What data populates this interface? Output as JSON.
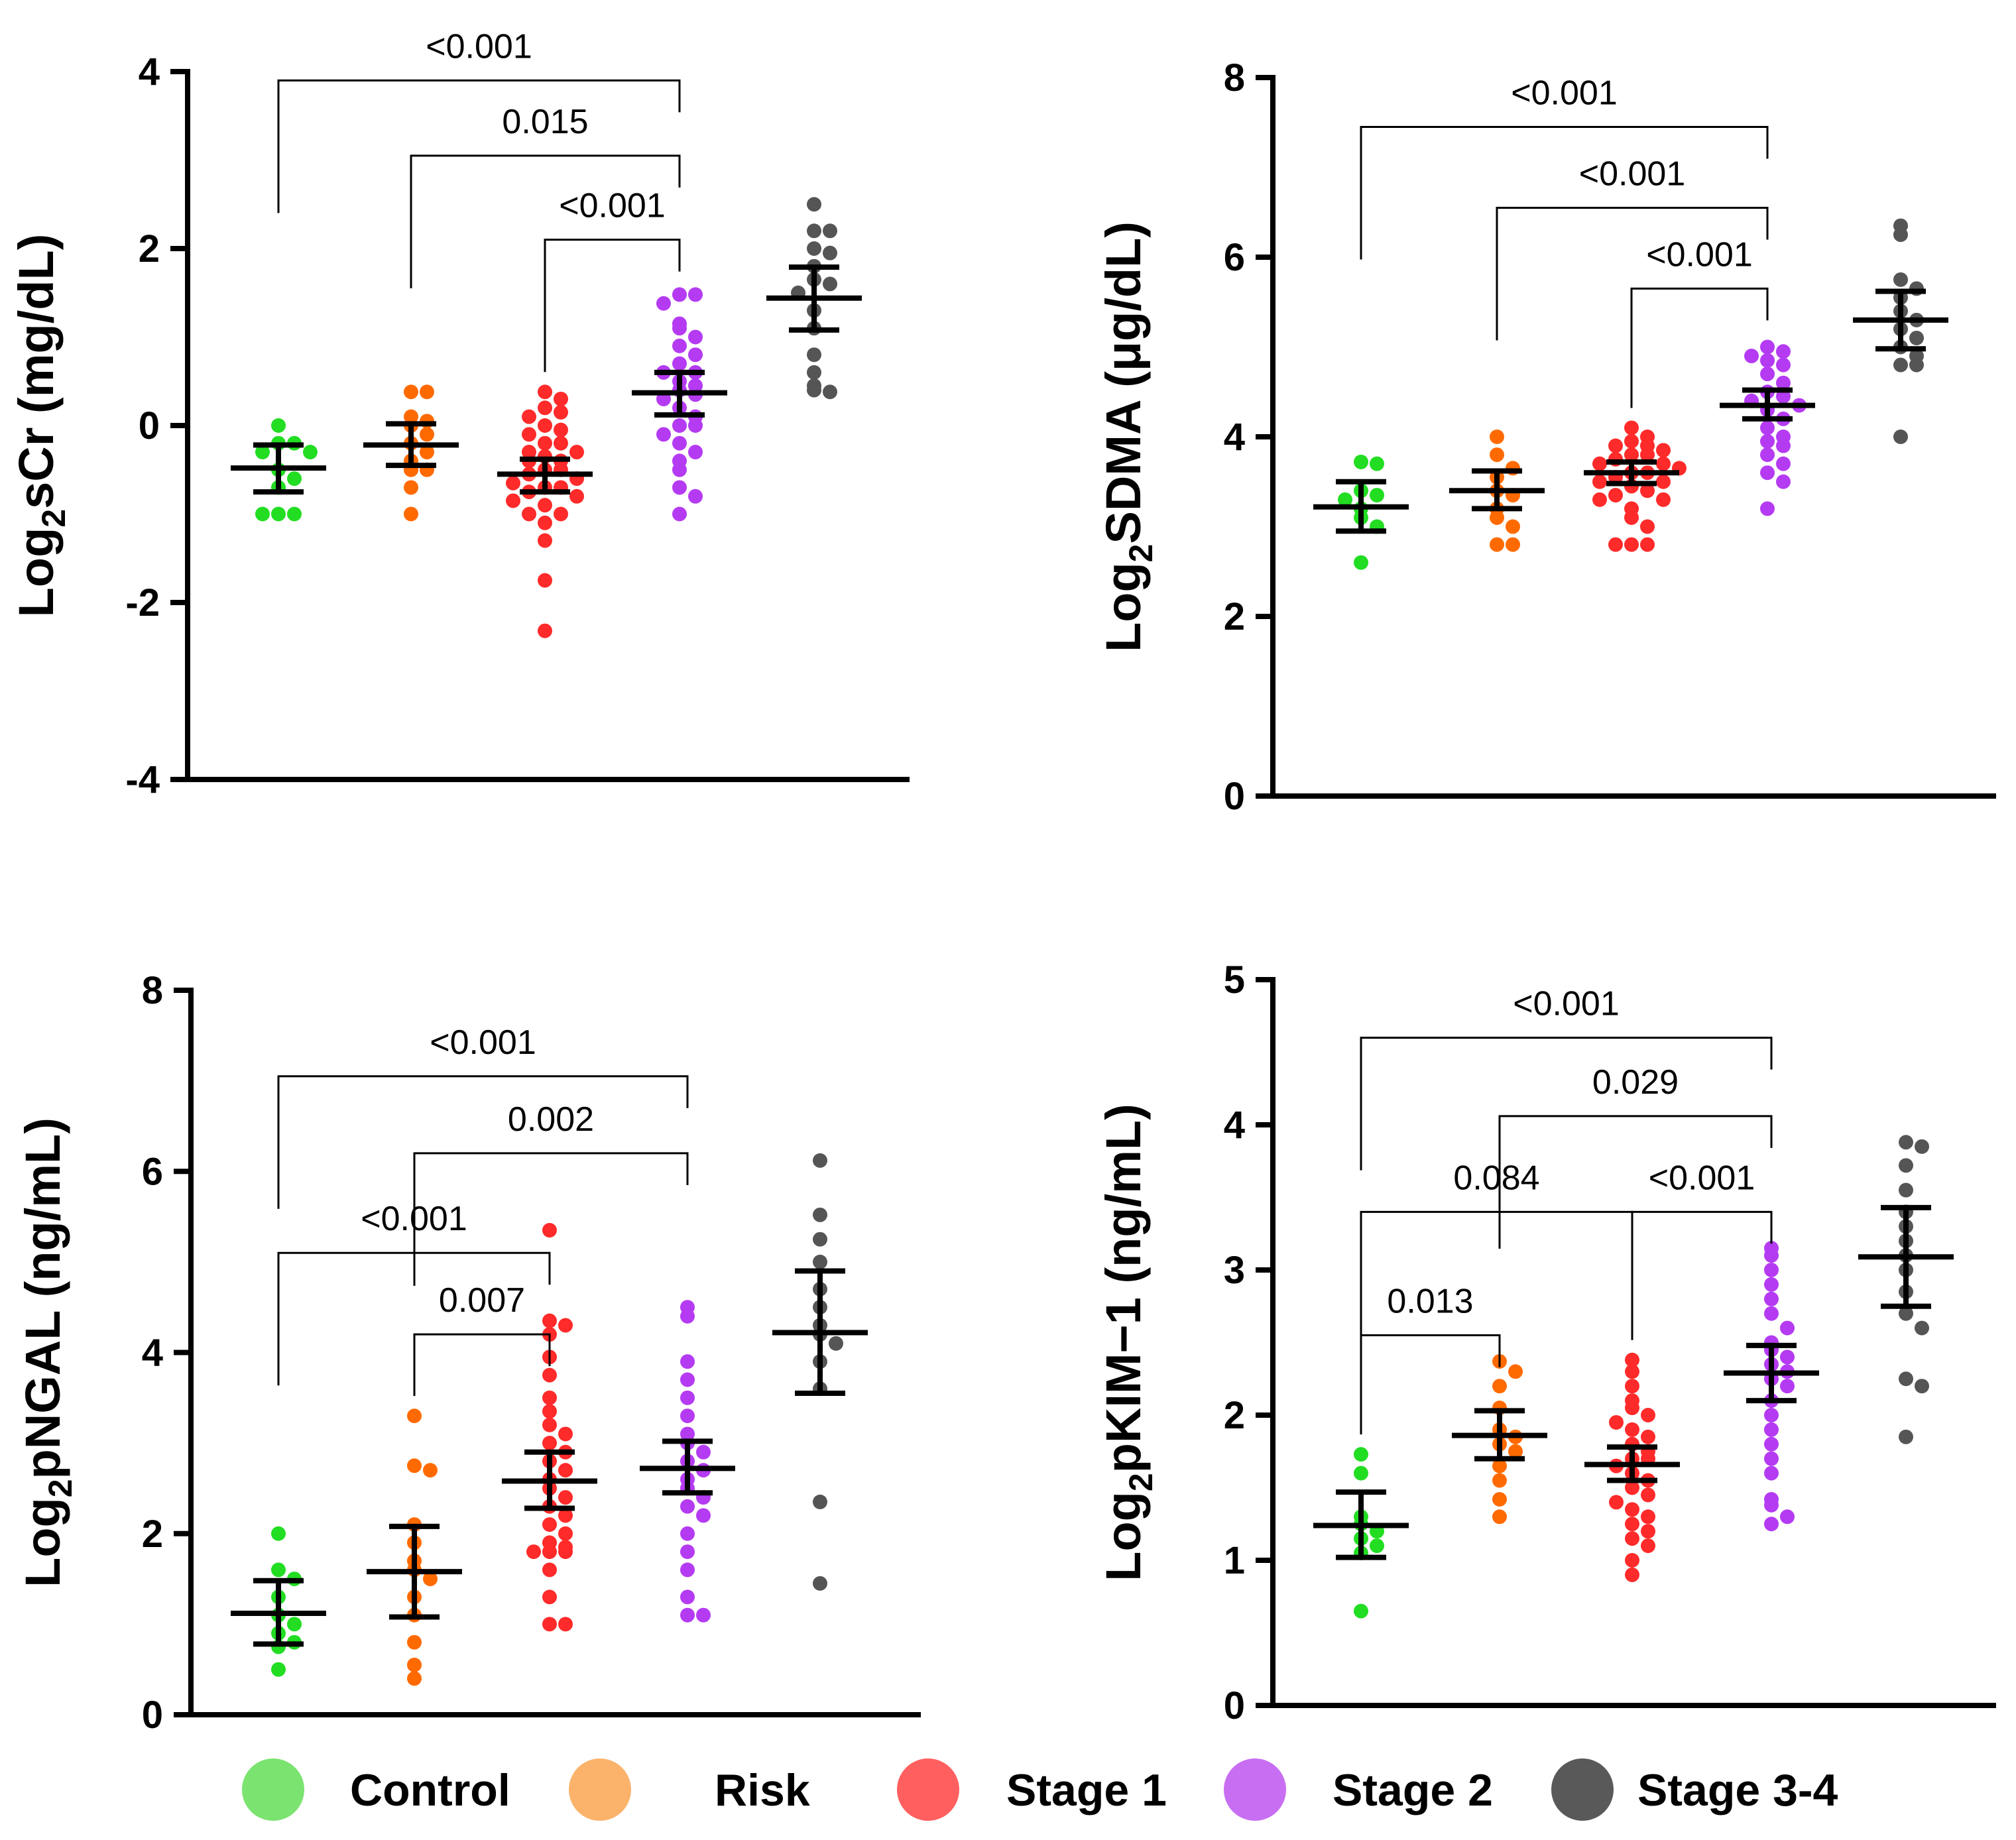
{
  "legend": [
    {
      "label": "Control",
      "color": "#7be36f"
    },
    {
      "label": "Risk",
      "color": "#fbb36b"
    },
    {
      "label": "Stage 1",
      "color": "#ff5f5f"
    },
    {
      "label": "Stage 2",
      "color": "#c86ef2"
    },
    {
      "label": "Stage 3-4",
      "color": "#595959"
    }
  ],
  "chart_data": [
    {
      "id": "scr",
      "type": "scatter",
      "ylabel_main": "Log",
      "ylabel_sub": "2",
      "ylabel_rest": "sCr (mg/dL)",
      "ylim": [
        -4,
        4
      ],
      "yticks": [
        -4,
        -2,
        0,
        2,
        4
      ],
      "tick_labels": [
        "-4",
        "-2",
        "0",
        "2",
        "4"
      ],
      "groups": [
        {
          "name": "Control",
          "color": "#22dd22",
          "mean": -0.48,
          "lo": -0.75,
          "hi": -0.22,
          "points": [
            0.0,
            -0.2,
            -0.2,
            -0.3,
            -0.3,
            -0.5,
            -0.6,
            -0.7,
            -1.0,
            -1.0,
            -1.0
          ]
        },
        {
          "name": "Risk",
          "color": "#ff6a00",
          "mean": -0.22,
          "lo": -0.45,
          "hi": 0.02,
          "points": [
            0.38,
            0.38,
            0.1,
            0.05,
            0.0,
            -0.1,
            -0.2,
            -0.3,
            -0.4,
            -0.5,
            -0.5,
            -0.7,
            -1.0
          ]
        },
        {
          "name": "Stage 1",
          "color": "#ff2a2a",
          "mean": -0.55,
          "lo": -0.75,
          "hi": -0.38,
          "points": [
            0.38,
            0.3,
            0.2,
            0.15,
            0.1,
            0.0,
            -0.05,
            -0.1,
            -0.2,
            -0.2,
            -0.3,
            -0.3,
            -0.35,
            -0.4,
            -0.4,
            -0.5,
            -0.5,
            -0.55,
            -0.6,
            -0.65,
            -0.7,
            -0.7,
            -0.75,
            -0.8,
            -0.85,
            -0.9,
            -1.0,
            -1.0,
            -1.1,
            -1.3,
            -1.75,
            -2.32
          ]
        },
        {
          "name": "Stage 2",
          "color": "#b43bf2",
          "mean": 0.37,
          "lo": 0.12,
          "hi": 0.6,
          "points": [
            1.48,
            1.48,
            1.38,
            1.15,
            1.1,
            1.0,
            0.9,
            0.8,
            0.7,
            0.6,
            0.6,
            0.5,
            0.45,
            0.4,
            0.35,
            0.3,
            0.2,
            0.1,
            0.0,
            0.0,
            -0.1,
            -0.2,
            -0.3,
            -0.4,
            -0.5,
            -0.7,
            -0.8,
            -1.0
          ]
        },
        {
          "name": "Stage 3-4",
          "color": "#555555",
          "mean": 1.44,
          "lo": 1.08,
          "hi": 1.79,
          "points": [
            2.5,
            2.2,
            2.2,
            2.0,
            1.95,
            1.8,
            1.65,
            1.6,
            1.5,
            1.3,
            1.1,
            0.8,
            0.6,
            0.45,
            0.4,
            0.38
          ]
        }
      ],
      "comparisons": [
        {
          "from": 0,
          "to": 3,
          "label": "<0.001",
          "level": 3.9
        },
        {
          "from": 1,
          "to": 3,
          "label": "0.015",
          "level": 3.05
        },
        {
          "from": 2,
          "to": 3,
          "label": "<0.001",
          "level": 2.1
        }
      ]
    },
    {
      "id": "sdma",
      "type": "scatter",
      "ylabel_main": "Log",
      "ylabel_sub": "2",
      "ylabel_rest": "SDMA (μg/dL)",
      "ylim": [
        0,
        8
      ],
      "yticks": [
        0,
        2,
        4,
        6,
        8
      ],
      "tick_labels": [
        "0",
        "2",
        "4",
        "6",
        "8"
      ],
      "groups": [
        {
          "name": "Control",
          "color": "#22dd22",
          "mean": 3.22,
          "lo": 2.95,
          "hi": 3.5,
          "points": [
            3.72,
            3.7,
            3.4,
            3.35,
            3.3,
            3.2,
            3.1,
            3.0,
            2.6
          ]
        },
        {
          "name": "Risk",
          "color": "#ff6a00",
          "mean": 3.4,
          "lo": 3.2,
          "hi": 3.62,
          "points": [
            4.0,
            3.8,
            3.65,
            3.55,
            3.4,
            3.35,
            3.2,
            3.1,
            3.0,
            2.8,
            2.8
          ]
        },
        {
          "name": "Stage 1",
          "color": "#ff2a2a",
          "mean": 3.6,
          "lo": 3.48,
          "hi": 3.72,
          "points": [
            4.1,
            4.0,
            3.95,
            3.9,
            3.9,
            3.85,
            3.8,
            3.8,
            3.75,
            3.7,
            3.7,
            3.65,
            3.6,
            3.6,
            3.55,
            3.5,
            3.5,
            3.45,
            3.4,
            3.35,
            3.3,
            3.3,
            3.2,
            3.1,
            3.0,
            2.8,
            2.8,
            2.8
          ]
        },
        {
          "name": "Stage 2",
          "color": "#b43bf2",
          "mean": 4.35,
          "lo": 4.2,
          "hi": 4.52,
          "points": [
            5.0,
            4.95,
            4.9,
            4.85,
            4.8,
            4.7,
            4.6,
            4.5,
            4.45,
            4.4,
            4.35,
            4.3,
            4.2,
            4.1,
            4.0,
            3.95,
            3.9,
            3.8,
            3.7,
            3.6,
            3.5,
            3.2
          ]
        },
        {
          "name": "Stage 3-4",
          "color": "#555555",
          "mean": 5.3,
          "lo": 4.98,
          "hi": 5.62,
          "points": [
            6.35,
            6.25,
            5.75,
            5.65,
            5.55,
            5.4,
            5.3,
            5.2,
            5.1,
            5.0,
            4.9,
            4.8,
            4.8,
            4.0
          ]
        }
      ],
      "comparisons": [
        {
          "from": 0,
          "to": 3,
          "label": "<0.001",
          "level": 7.45
        },
        {
          "from": 1,
          "to": 3,
          "label": "<0.001",
          "level": 6.55
        },
        {
          "from": 2,
          "to": 3,
          "label": "<0.001",
          "level": 5.65
        }
      ]
    },
    {
      "id": "ngal",
      "type": "scatter",
      "ylabel_main": "Log",
      "ylabel_sub": "2",
      "ylabel_rest": "pNGAL (ng/mL)",
      "ylim": [
        0,
        8
      ],
      "yticks": [
        0,
        2,
        4,
        6,
        8
      ],
      "tick_labels": [
        "0",
        "2",
        "4",
        "6",
        "8"
      ],
      "groups": [
        {
          "name": "Control",
          "color": "#22dd22",
          "mean": 1.12,
          "lo": 0.78,
          "hi": 1.48,
          "points": [
            2.0,
            1.6,
            1.5,
            1.3,
            1.1,
            1.0,
            0.9,
            0.8,
            0.75,
            0.5
          ]
        },
        {
          "name": "Risk",
          "color": "#ff6a00",
          "mean": 1.58,
          "lo": 1.08,
          "hi": 2.08,
          "points": [
            3.3,
            2.75,
            2.7,
            2.1,
            1.9,
            1.7,
            1.6,
            1.5,
            1.3,
            1.1,
            0.8,
            0.55,
            0.4
          ]
        },
        {
          "name": "Stage 1",
          "color": "#ff2a2a",
          "mean": 2.58,
          "lo": 2.28,
          "hi": 2.9,
          "points": [
            5.35,
            4.35,
            4.3,
            4.2,
            3.95,
            3.75,
            3.5,
            3.35,
            3.2,
            3.1,
            3.0,
            2.9,
            2.8,
            2.7,
            2.6,
            2.5,
            2.4,
            2.3,
            2.2,
            2.1,
            2.0,
            1.9,
            1.85,
            1.8,
            1.8,
            1.8,
            1.6,
            1.3,
            1.0,
            1.0
          ]
        },
        {
          "name": "Stage 2",
          "color": "#b43bf2",
          "mean": 2.72,
          "lo": 2.45,
          "hi": 3.02,
          "points": [
            4.5,
            4.4,
            3.9,
            3.7,
            3.5,
            3.3,
            3.1,
            3.0,
            2.9,
            2.8,
            2.7,
            2.6,
            2.5,
            2.4,
            2.3,
            2.2,
            2.0,
            1.8,
            1.6,
            1.3,
            1.1,
            1.1
          ]
        },
        {
          "name": "Stage 3-4",
          "color": "#555555",
          "mean": 4.22,
          "lo": 3.55,
          "hi": 4.9,
          "points": [
            6.12,
            5.52,
            5.25,
            5.0,
            4.7,
            4.5,
            4.3,
            4.2,
            4.1,
            3.9,
            3.6,
            2.35,
            1.45
          ]
        }
      ],
      "comparisons": [
        {
          "from": 0,
          "to": 3,
          "label": "<0.001",
          "level": 7.05
        },
        {
          "from": 1,
          "to": 3,
          "label": "0.002",
          "level": 6.2
        },
        {
          "from": 0,
          "to": 2,
          "label": "<0.001",
          "level": 5.1
        },
        {
          "from": 1,
          "to": 2,
          "label": "0.007",
          "level": 4.2
        }
      ]
    },
    {
      "id": "kim1",
      "type": "scatter",
      "ylabel_main": "Log",
      "ylabel_sub": "2",
      "ylabel_rest": "pKIM−1 (ng/mL)",
      "ylim": [
        0,
        5
      ],
      "yticks": [
        0,
        1,
        2,
        3,
        4,
        5
      ],
      "tick_labels": [
        "0",
        "1",
        "2",
        "3",
        "4",
        "5"
      ],
      "groups": [
        {
          "name": "Control",
          "color": "#22dd22",
          "mean": 1.24,
          "lo": 1.02,
          "hi": 1.47,
          "points": [
            1.73,
            1.6,
            1.3,
            1.25,
            1.2,
            1.15,
            1.1,
            1.05,
            0.65
          ]
        },
        {
          "name": "Risk",
          "color": "#ff6a00",
          "mean": 1.86,
          "lo": 1.7,
          "hi": 2.03,
          "points": [
            2.37,
            2.3,
            2.2,
            2.05,
            1.9,
            1.85,
            1.8,
            1.75,
            1.65,
            1.55,
            1.42,
            1.3
          ]
        },
        {
          "name": "Stage 1",
          "color": "#ff2a2a",
          "mean": 1.66,
          "lo": 1.55,
          "hi": 1.78,
          "points": [
            2.38,
            2.3,
            2.2,
            2.1,
            2.05,
            2.0,
            1.95,
            1.9,
            1.85,
            1.8,
            1.75,
            1.7,
            1.7,
            1.65,
            1.6,
            1.55,
            1.5,
            1.45,
            1.4,
            1.35,
            1.3,
            1.25,
            1.2,
            1.15,
            1.1,
            1.0,
            0.9
          ]
        },
        {
          "name": "Stage 2",
          "color": "#b43bf2",
          "mean": 2.29,
          "lo": 2.1,
          "hi": 2.48,
          "points": [
            3.15,
            3.1,
            3.0,
            2.9,
            2.8,
            2.7,
            2.6,
            2.5,
            2.45,
            2.4,
            2.35,
            2.3,
            2.25,
            2.2,
            2.1,
            2.0,
            1.9,
            1.8,
            1.7,
            1.6,
            1.42,
            1.38,
            1.3,
            1.25
          ]
        },
        {
          "name": "Stage 3-4",
          "color": "#555555",
          "mean": 3.09,
          "lo": 2.75,
          "hi": 3.43,
          "points": [
            3.88,
            3.85,
            3.72,
            3.55,
            3.4,
            3.3,
            3.2,
            3.1,
            3.0,
            2.85,
            2.7,
            2.6,
            2.25,
            2.2,
            1.85
          ]
        }
      ],
      "comparisons": [
        {
          "from": 0,
          "to": 3,
          "label": "<0.001",
          "level": 4.6
        },
        {
          "from": 1,
          "to": 3,
          "label": "0.029",
          "level": 4.06
        },
        {
          "from": 0,
          "to": 2,
          "label": "0.084",
          "level": 3.4
        },
        {
          "from": 2,
          "to": 3,
          "label": "<0.001",
          "level": 3.4
        },
        {
          "from": 0,
          "to": 1,
          "label": "0.013",
          "level": 2.55
        }
      ]
    }
  ]
}
